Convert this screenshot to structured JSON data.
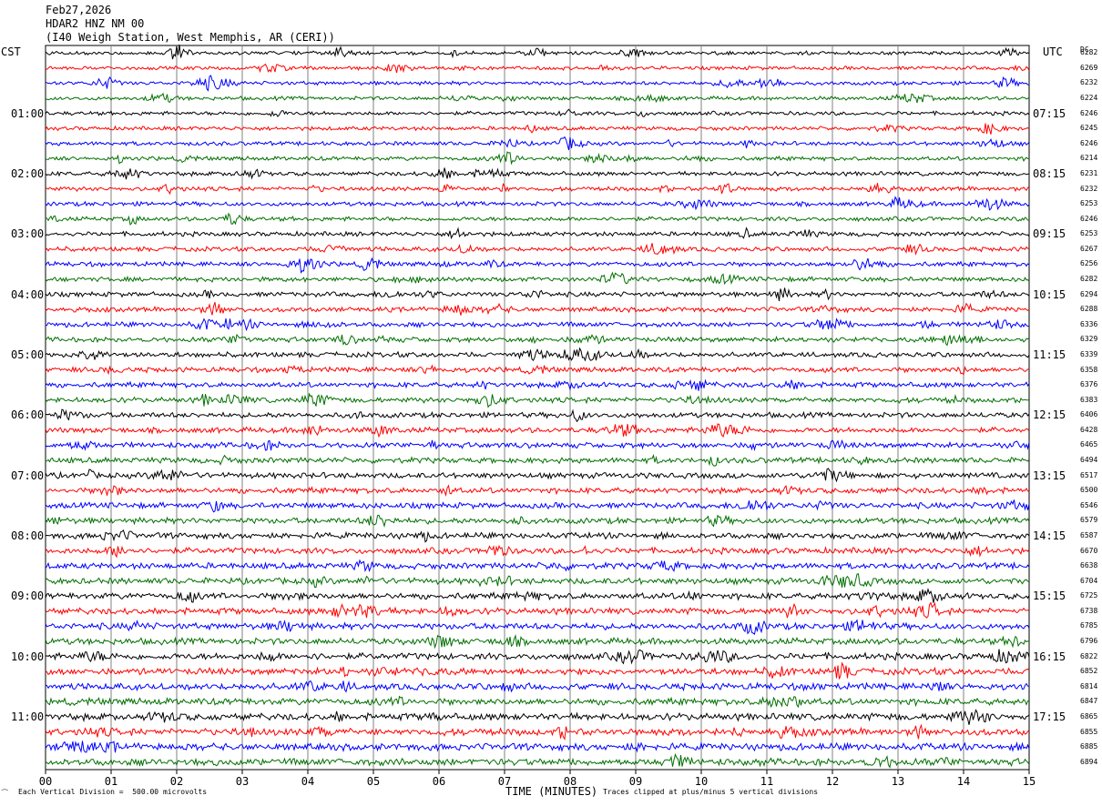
{
  "header": {
    "date": "Feb27,2026",
    "station": "HDAR2 HNZ NM 00",
    "location": "(I40 Weigh Station, West Memphis, AR (CERI))"
  },
  "left_axis_label": "CST",
  "right_axis_label": "UTC",
  "dc_label": "DC",
  "colors": {
    "cycle": [
      "#000000",
      "#ff0000",
      "#0000ff",
      "#007000"
    ],
    "grid": "#808080"
  },
  "footer": {
    "corner_mark": "⁀",
    "scale_note": "Each Vertical Division =  500.00 microvolts",
    "clip_note": "Traces clipped at plus/minus 5 vertical divisions"
  },
  "chart_data": {
    "type": "line",
    "subtype": "helicorder",
    "xlabel": "TIME (MINUTES)",
    "x_ticks": [
      "00",
      "01",
      "02",
      "03",
      "04",
      "05",
      "06",
      "07",
      "08",
      "09",
      "10",
      "11",
      "12",
      "13",
      "14",
      "15"
    ],
    "xlim": [
      0,
      15
    ],
    "trace_count": 48,
    "trace_minutes": 15,
    "left_time_labels": [
      "01:00",
      "02:00",
      "03:00",
      "04:00",
      "05:00",
      "06:00",
      "07:00",
      "08:00",
      "09:00",
      "10:00",
      "11:00"
    ],
    "right_time_labels": [
      "07:15",
      "08:15",
      "09:15",
      "10:15",
      "11:15",
      "12:15",
      "13:15",
      "14:15",
      "15:15",
      "16:15",
      "17:15"
    ],
    "dc_offsets": [
      "6282",
      "6269",
      "6232",
      "6224",
      "6246",
      "6245",
      "6246",
      "6214",
      "6231",
      "6232",
      "6253",
      "6246",
      "6253",
      "6267",
      "6256",
      "6282",
      "6294",
      "6288",
      "6336",
      "6329",
      "6339",
      "6358",
      "6376",
      "6383",
      "6406",
      "6428",
      "6465",
      "6494",
      "6517",
      "6500",
      "6546",
      "6579",
      "6587",
      "6670",
      "6638",
      "6704",
      "6725",
      "6738",
      "6785",
      "6796",
      "6822",
      "6852",
      "6814",
      "6847",
      "6865",
      "6855",
      "6885",
      "6894"
    ]
  }
}
